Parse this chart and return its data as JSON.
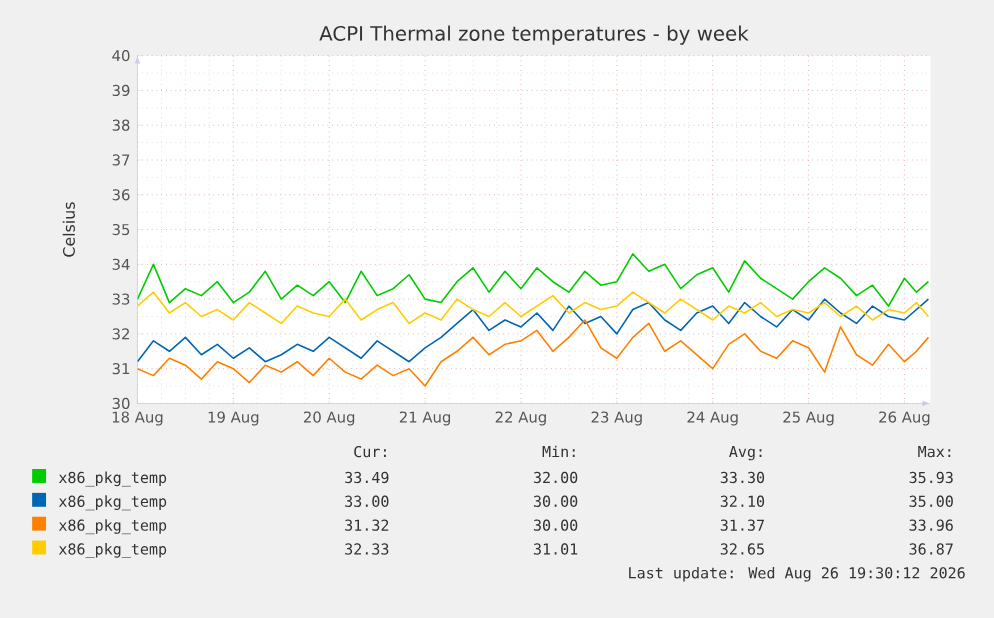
{
  "chart_data": {
    "type": "line",
    "title": "ACPI Thermal zone temperatures - by week",
    "ylabel": "Celsius",
    "x": [
      "2026-08-18T00:00",
      "2026-08-18T04:00",
      "2026-08-18T08:00",
      "2026-08-18T12:00",
      "2026-08-18T16:00",
      "2026-08-18T20:00",
      "2026-08-19T00:00",
      "2026-08-19T04:00",
      "2026-08-19T08:00",
      "2026-08-19T12:00",
      "2026-08-19T16:00",
      "2026-08-19T20:00",
      "2026-08-20T00:00",
      "2026-08-20T04:00",
      "2026-08-20T08:00",
      "2026-08-20T12:00",
      "2026-08-20T16:00",
      "2026-08-20T20:00",
      "2026-08-21T00:00",
      "2026-08-21T04:00",
      "2026-08-21T08:00",
      "2026-08-21T12:00",
      "2026-08-21T16:00",
      "2026-08-21T20:00",
      "2026-08-22T00:00",
      "2026-08-22T04:00",
      "2026-08-22T08:00",
      "2026-08-22T12:00",
      "2026-08-22T16:00",
      "2026-08-22T20:00",
      "2026-08-23T00:00",
      "2026-08-23T04:00",
      "2026-08-23T08:00",
      "2026-08-23T12:00",
      "2026-08-23T16:00",
      "2026-08-23T20:00",
      "2026-08-24T00:00",
      "2026-08-24T04:00",
      "2026-08-24T08:00",
      "2026-08-24T12:00",
      "2026-08-24T16:00",
      "2026-08-24T20:00",
      "2026-08-25T00:00",
      "2026-08-25T04:00",
      "2026-08-25T08:00",
      "2026-08-25T12:00",
      "2026-08-25T16:00",
      "2026-08-25T20:00",
      "2026-08-26T00:00",
      "2026-08-26T03:00",
      "2026-08-26T06:00"
    ],
    "series": [
      {
        "name": "x86_pkg_temp",
        "color": "#00cc00",
        "values": [
          33.0,
          34.0,
          32.9,
          33.3,
          33.1,
          33.5,
          32.9,
          33.2,
          33.8,
          33.0,
          33.4,
          33.1,
          33.5,
          32.9,
          33.8,
          33.1,
          33.3,
          33.7,
          33.0,
          32.9,
          33.5,
          33.9,
          33.2,
          33.8,
          33.3,
          33.9,
          33.5,
          33.2,
          33.8,
          33.4,
          33.5,
          34.3,
          33.8,
          34.0,
          33.3,
          33.7,
          33.9,
          33.2,
          34.1,
          33.6,
          33.3,
          33.0,
          33.5,
          33.9,
          33.6,
          33.1,
          33.4,
          32.8,
          33.6,
          33.2,
          33.5
        ]
      },
      {
        "name": "x86_pkg_temp",
        "color": "#0066b3",
        "values": [
          31.2,
          31.8,
          31.5,
          31.9,
          31.4,
          31.7,
          31.3,
          31.6,
          31.2,
          31.4,
          31.7,
          31.5,
          31.9,
          31.6,
          31.3,
          31.8,
          31.5,
          31.2,
          31.6,
          31.9,
          32.3,
          32.7,
          32.1,
          32.4,
          32.2,
          32.6,
          32.1,
          32.8,
          32.3,
          32.5,
          32.0,
          32.7,
          32.9,
          32.4,
          32.1,
          32.6,
          32.8,
          32.3,
          32.9,
          32.5,
          32.2,
          32.7,
          32.4,
          33.0,
          32.6,
          32.3,
          32.8,
          32.5,
          32.4,
          32.7,
          33.0
        ]
      },
      {
        "name": "x86_pkg_temp",
        "color": "#ff8000",
        "values": [
          31.0,
          30.8,
          31.3,
          31.1,
          30.7,
          31.2,
          31.0,
          30.6,
          31.1,
          30.9,
          31.2,
          30.8,
          31.3,
          30.9,
          30.7,
          31.1,
          30.8,
          31.0,
          30.5,
          31.2,
          31.5,
          31.9,
          31.4,
          31.7,
          31.8,
          32.1,
          31.5,
          31.9,
          32.4,
          31.6,
          31.3,
          31.9,
          32.3,
          31.5,
          31.8,
          31.4,
          31.0,
          31.7,
          32.0,
          31.5,
          31.3,
          31.8,
          31.6,
          30.9,
          32.2,
          31.4,
          31.1,
          31.7,
          31.2,
          31.5,
          31.9
        ]
      },
      {
        "name": "x86_pkg_temp",
        "color": "#ffcc00",
        "values": [
          32.8,
          33.2,
          32.6,
          32.9,
          32.5,
          32.7,
          32.4,
          32.9,
          32.6,
          32.3,
          32.8,
          32.6,
          32.5,
          33.0,
          32.4,
          32.7,
          32.9,
          32.3,
          32.6,
          32.4,
          33.0,
          32.7,
          32.5,
          32.9,
          32.5,
          32.8,
          33.1,
          32.6,
          32.9,
          32.7,
          32.8,
          33.2,
          32.9,
          32.6,
          33.0,
          32.7,
          32.4,
          32.8,
          32.6,
          32.9,
          32.5,
          32.7,
          32.6,
          32.9,
          32.5,
          32.8,
          32.4,
          32.7,
          32.6,
          32.9,
          32.5
        ]
      }
    ],
    "xlim": [
      "2026-08-18T00:00",
      "2026-08-26T06:30"
    ],
    "xticks": [
      {
        "value": "2026-08-18",
        "label": "18 Aug"
      },
      {
        "value": "2026-08-19",
        "label": "19 Aug"
      },
      {
        "value": "2026-08-20",
        "label": "20 Aug"
      },
      {
        "value": "2026-08-21",
        "label": "21 Aug"
      },
      {
        "value": "2026-08-22",
        "label": "22 Aug"
      },
      {
        "value": "2026-08-23",
        "label": "23 Aug"
      },
      {
        "value": "2026-08-24",
        "label": "24 Aug"
      },
      {
        "value": "2026-08-25",
        "label": "25 Aug"
      },
      {
        "value": "2026-08-26",
        "label": "26 Aug"
      }
    ],
    "ylim": [
      30,
      40
    ],
    "yticks": [
      30,
      31,
      32,
      33,
      34,
      35,
      36,
      37,
      38,
      39,
      40
    ],
    "grid": true,
    "legend": "bottom",
    "annotations": [
      "Cur:",
      "Min:",
      "Avg:",
      "Max:",
      "33.49",
      "32.00",
      "33.30",
      "35.93",
      "33.00",
      "30.00",
      "32.10",
      "35.00",
      "31.32",
      "30.00",
      "31.37",
      "33.96",
      "32.33",
      "31.01",
      "32.65",
      "36.87",
      "Last update: Wed Aug 26 19:30:12 2026"
    ]
  }
}
